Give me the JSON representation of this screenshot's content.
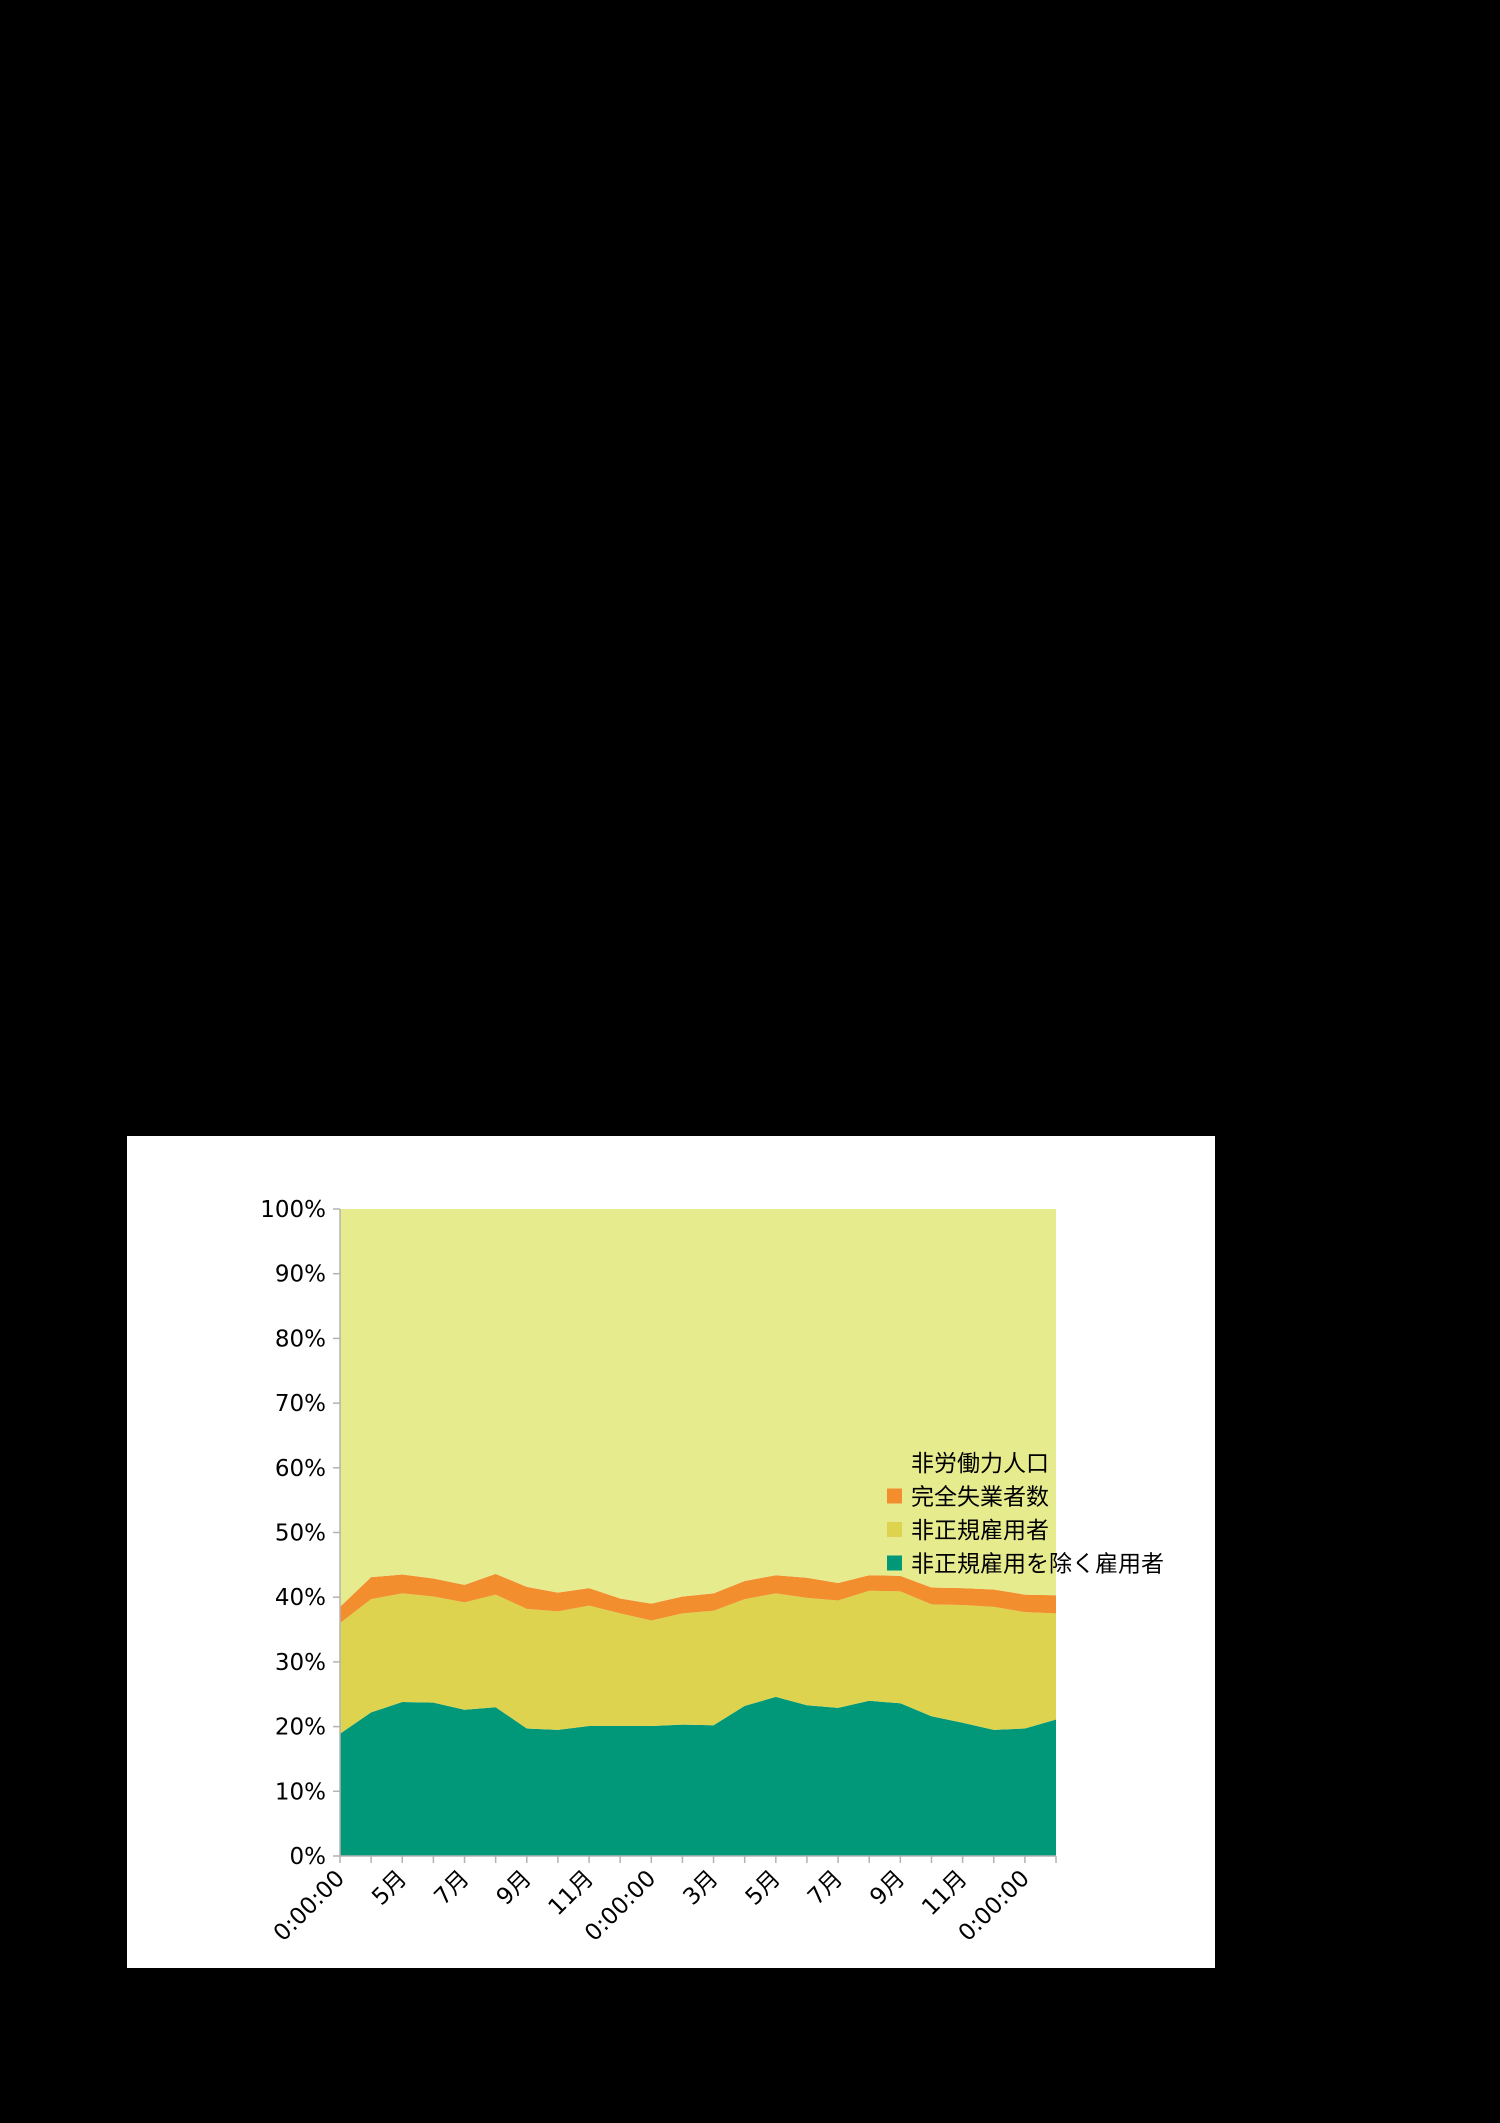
{
  "chart_data": {
    "type": "area",
    "stacking": "percent",
    "title": "",
    "xlabel": "",
    "ylabel": "",
    "ylim": [
      0,
      100
    ],
    "y_ticks": [
      "0%",
      "10%",
      "20%",
      "30%",
      "40%",
      "50%",
      "60%",
      "70%",
      "80%",
      "90%",
      "100%"
    ],
    "x_tick_labels": [
      "0:00:00",
      "5月",
      "7月",
      "9月",
      "11月",
      "0:00:00",
      "3月",
      "5月",
      "7月",
      "9月",
      "11月",
      "0:00:00"
    ],
    "x_tick_label_every": 2,
    "grid": false,
    "legend_position": "right",
    "series": [
      {
        "name": "非正規雇用を除く雇用者",
        "color": "#009878",
        "values": [
          18.9,
          22.2,
          23.8,
          23.7,
          22.6,
          23.0,
          19.7,
          19.5,
          20.1,
          20.1,
          20.1,
          20.3,
          20.2,
          23.2,
          24.6,
          23.3,
          22.9,
          24.0,
          23.6,
          21.6,
          20.6,
          19.5,
          19.7,
          21.1
        ]
      },
      {
        "name": "非正規雇用者",
        "color": "#ddd34f",
        "values": [
          17.1,
          17.5,
          16.8,
          16.4,
          16.6,
          17.4,
          18.5,
          18.3,
          18.6,
          17.4,
          16.3,
          17.2,
          17.7,
          16.5,
          16.0,
          16.6,
          16.6,
          17.0,
          17.3,
          17.3,
          18.2,
          19.0,
          18.0,
          16.4
        ]
      },
      {
        "name": "完全失業者数",
        "color": "#f28e2e",
        "values": [
          2.5,
          3.4,
          2.9,
          2.8,
          2.7,
          3.2,
          3.4,
          2.9,
          2.7,
          2.3,
          2.6,
          2.6,
          2.7,
          2.8,
          2.8,
          3.1,
          2.7,
          2.4,
          2.4,
          2.6,
          2.6,
          2.7,
          2.7,
          2.8
        ]
      },
      {
        "name": "非労働力人口",
        "color": "#e6eb8e",
        "values": [
          61.5,
          56.9,
          56.5,
          57.1,
          58.1,
          56.4,
          58.4,
          59.3,
          58.6,
          60.2,
          61.0,
          59.9,
          59.4,
          57.5,
          56.6,
          57.0,
          57.8,
          56.6,
          56.7,
          58.5,
          58.6,
          58.8,
          59.6,
          59.7
        ]
      }
    ],
    "legend_order": [
      "非労働力人口",
      "完全失業者数",
      "非正規雇用者",
      "非正規雇用を除く雇用者"
    ]
  }
}
